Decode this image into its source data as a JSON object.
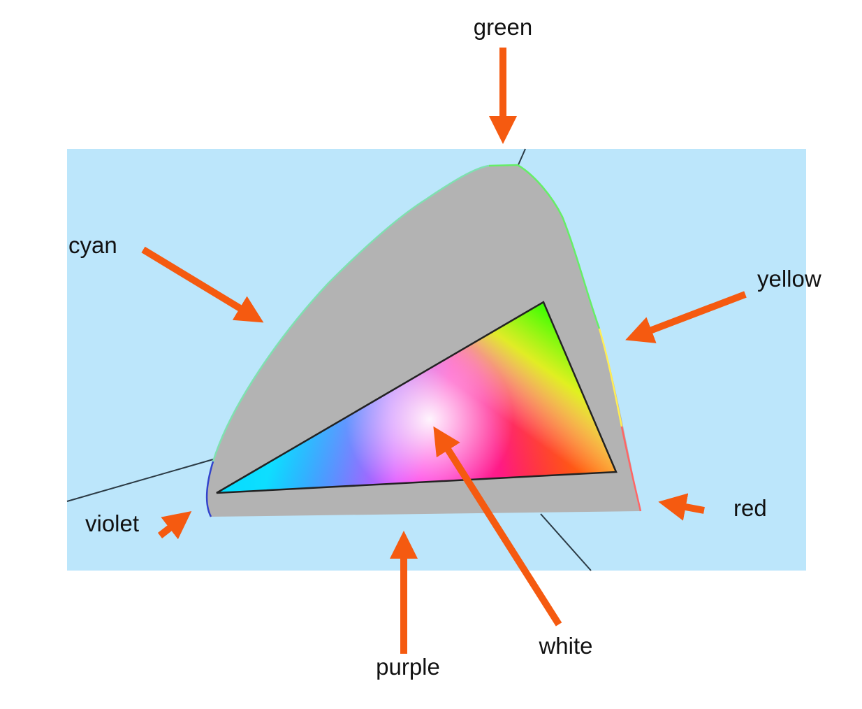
{
  "labels": {
    "green": "green",
    "cyan": "cyan",
    "yellow": "yellow",
    "violet": "violet",
    "red": "red",
    "purple": "purple",
    "white": "white"
  },
  "colors": {
    "background_panel": "#bce6fb",
    "gamut_fill": "#b3b3b3",
    "arrow": "#f55a10",
    "axis_line": "#2b3a44",
    "triangle_red": "#ff0000",
    "triangle_green": "#00ff00",
    "triangle_blue": "#0000ff",
    "triangle_white": "#ffffff"
  }
}
